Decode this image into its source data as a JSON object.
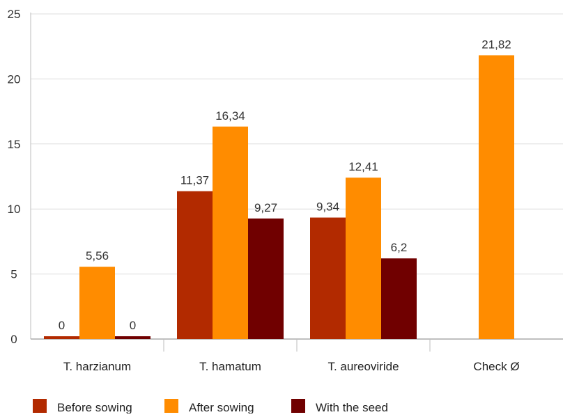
{
  "chart_data": {
    "type": "bar",
    "categories": [
      "T. harzianum",
      "T. hamatum",
      "T. aureoviride",
      "Check Ø"
    ],
    "series": [
      {
        "name": "Before sowing",
        "color": "#B22A00",
        "values": [
          0,
          11.37,
          9.34,
          null
        ],
        "labels": [
          "0",
          "11,37",
          "9,34",
          ""
        ]
      },
      {
        "name": "After sowing",
        "color": "#FF8C00",
        "values": [
          5.56,
          16.34,
          12.41,
          21.82
        ],
        "labels": [
          "5,56",
          "16,34",
          "12,41",
          "21,82"
        ]
      },
      {
        "name": "With the seed",
        "color": "#700000",
        "values": [
          0,
          9.27,
          6.2,
          null
        ],
        "labels": [
          "0",
          "9,27",
          "6,2",
          ""
        ]
      }
    ],
    "yticks": [
      "0",
      "5",
      "10",
      "15",
      "20",
      "25"
    ],
    "ylim": [
      0,
      25
    ],
    "grid": true,
    "legend": "bottom",
    "title": "",
    "xlabel": "",
    "ylabel": ""
  }
}
